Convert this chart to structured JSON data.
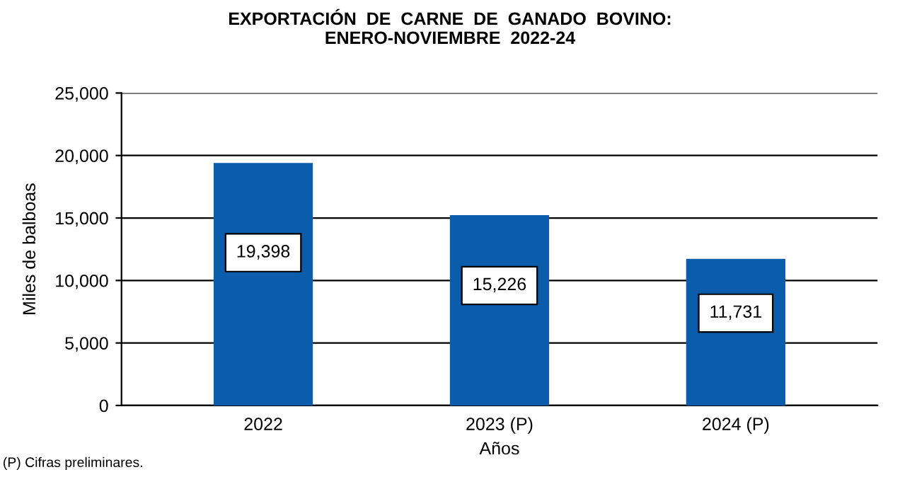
{
  "chart_data": {
    "type": "bar",
    "title": "EXPORTACIÓN  DE  CARNE  DE  GANADO  BOVINO:\nENERO-NOVIEMBRE  2022-24",
    "xlabel": "Años",
    "ylabel": "Miles de balboas",
    "categories": [
      "2022",
      "2023 (P)",
      "2024 (P)"
    ],
    "values": [
      19398,
      15226,
      11731
    ],
    "color": "#0b5cab",
    "ylim": [
      0,
      25000
    ],
    "yticks": [
      {
        "value": 0,
        "label": "0"
      },
      {
        "value": 5000,
        "label": "5,000"
      },
      {
        "value": 10000,
        "label": "10,000"
      },
      {
        "value": 15000,
        "label": "15,000"
      },
      {
        "value": 20000,
        "label": "20,000"
      },
      {
        "value": 25000,
        "label": "25,000"
      }
    ],
    "value_labels": [
      "19,398",
      "15,226",
      "11,731"
    ],
    "grid": "y",
    "legend": false,
    "annotations": [
      "(P) Cifras preliminares."
    ]
  }
}
